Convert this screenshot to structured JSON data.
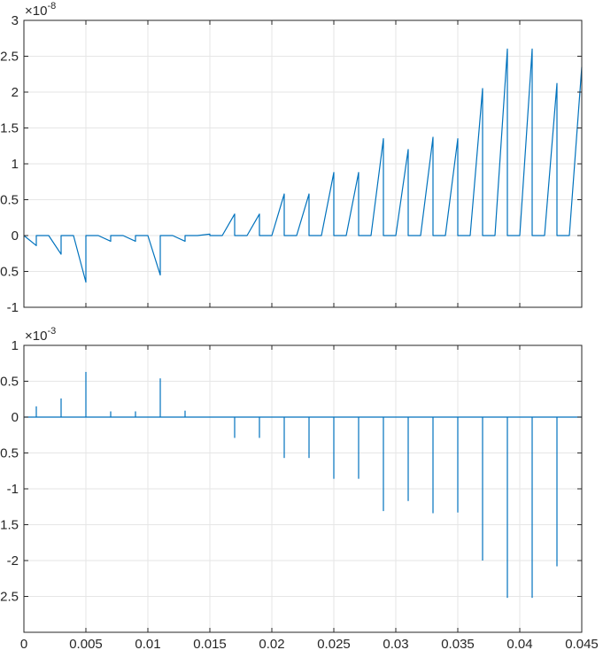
{
  "chart_data": [
    {
      "type": "line",
      "id": "top",
      "exponent_label": {
        "base": "×10",
        "power": "-8"
      },
      "xlim": [
        0,
        0.045
      ],
      "ylim": [
        -1,
        3
      ],
      "xticks": [
        0,
        0.005,
        0.01,
        0.015,
        0.02,
        0.025,
        0.03,
        0.035,
        0.04,
        0.045
      ],
      "yticks": [
        -1,
        -0.5,
        0,
        0.5,
        1,
        1.5,
        2,
        2.5,
        3
      ],
      "ytick_labels": [
        "-1",
        "-0.5",
        "0",
        "0.5",
        "1",
        "1.5",
        "2",
        "2.5",
        "3"
      ],
      "xtick_labels": [
        "",
        "",
        "",
        "",
        "",
        "",
        "",
        "",
        "",
        ""
      ],
      "grid": true,
      "color": "#0072BD",
      "series": [
        {
          "x": [
            0,
            0.001,
            0.001,
            0.002,
            0.002,
            0.003,
            0.003,
            0.004,
            0.004,
            0.005,
            0.005,
            0.006,
            0.006,
            0.007,
            0.007,
            0.008,
            0.008,
            0.009,
            0.009,
            0.01,
            0.01,
            0.011,
            0.011,
            0.012,
            0.012,
            0.013,
            0.013,
            0.014,
            0.014,
            0.015,
            0.015,
            0.016,
            0.016,
            0.017,
            0.017,
            0.018,
            0.018,
            0.019,
            0.019,
            0.02,
            0.02,
            0.021,
            0.021,
            0.022,
            0.022,
            0.023,
            0.023,
            0.024,
            0.024,
            0.025,
            0.025,
            0.026,
            0.026,
            0.027,
            0.027,
            0.028,
            0.028,
            0.029,
            0.029,
            0.03,
            0.03,
            0.031,
            0.031,
            0.032,
            0.032,
            0.033,
            0.033,
            0.034,
            0.034,
            0.035,
            0.035,
            0.036,
            0.036,
            0.037,
            0.037,
            0.038,
            0.038,
            0.039,
            0.039,
            0.04,
            0.04,
            0.041,
            0.041,
            0.042,
            0.042,
            0.043,
            0.043,
            0.044,
            0.044,
            0.045
          ],
          "y": [
            0,
            -0.14,
            0,
            0,
            0,
            -0.26,
            0,
            0,
            0,
            -0.65,
            0,
            0,
            0,
            -0.08,
            0,
            0,
            0,
            -0.08,
            0,
            0,
            0,
            -0.55,
            0,
            0,
            0,
            -0.08,
            0,
            0,
            0,
            0.02,
            0,
            0,
            0,
            0.3,
            0,
            0,
            0,
            0.3,
            0,
            0,
            0,
            0.58,
            0,
            0,
            0,
            0.58,
            0,
            0,
            0,
            0.88,
            0,
            0,
            0,
            0.88,
            0,
            0,
            0,
            1.35,
            0,
            0,
            0,
            1.2,
            0,
            0,
            0,
            1.37,
            0,
            0,
            0,
            1.35,
            0,
            0,
            0,
            2.05,
            0,
            0,
            0,
            2.6,
            0,
            0,
            0,
            2.6,
            0,
            0,
            0,
            2.12,
            0,
            0,
            0,
            2.35
          ]
        }
      ]
    },
    {
      "type": "line",
      "id": "bottom",
      "exponent_label": {
        "base": "×10",
        "power": "-3"
      },
      "xlim": [
        0,
        0.045
      ],
      "ylim": [
        -3,
        1
      ],
      "xticks": [
        0,
        0.005,
        0.01,
        0.015,
        0.02,
        0.025,
        0.03,
        0.035,
        0.04,
        0.045
      ],
      "xtick_labels": [
        "0",
        "0.005",
        "0.01",
        "0.015",
        "0.02",
        "0.025",
        "0.03",
        "0.035",
        "0.04",
        "0.045"
      ],
      "yticks": [
        -3,
        -2.5,
        -2,
        -1.5,
        -1,
        -0.5,
        0,
        0.5,
        1
      ],
      "ytick_labels": [
        "",
        "-2.5",
        "-2",
        "-1.5",
        "-1",
        "-0.5",
        "0",
        "0.5",
        "1"
      ],
      "grid": true,
      "color": "#0072BD",
      "spikes": {
        "x": [
          0.001,
          0.003,
          0.005,
          0.007,
          0.009,
          0.011,
          0.013,
          0.017,
          0.019,
          0.021,
          0.023,
          0.025,
          0.027,
          0.029,
          0.031,
          0.033,
          0.035,
          0.037,
          0.039,
          0.041,
          0.043
        ],
        "y": [
          0.15,
          0.26,
          0.63,
          0.08,
          0.08,
          0.54,
          0.09,
          -0.29,
          -0.29,
          -0.57,
          -0.57,
          -0.86,
          -0.86,
          -1.31,
          -1.17,
          -1.34,
          -1.33,
          -2.0,
          -2.52,
          -2.52,
          -2.08
        ]
      }
    }
  ]
}
